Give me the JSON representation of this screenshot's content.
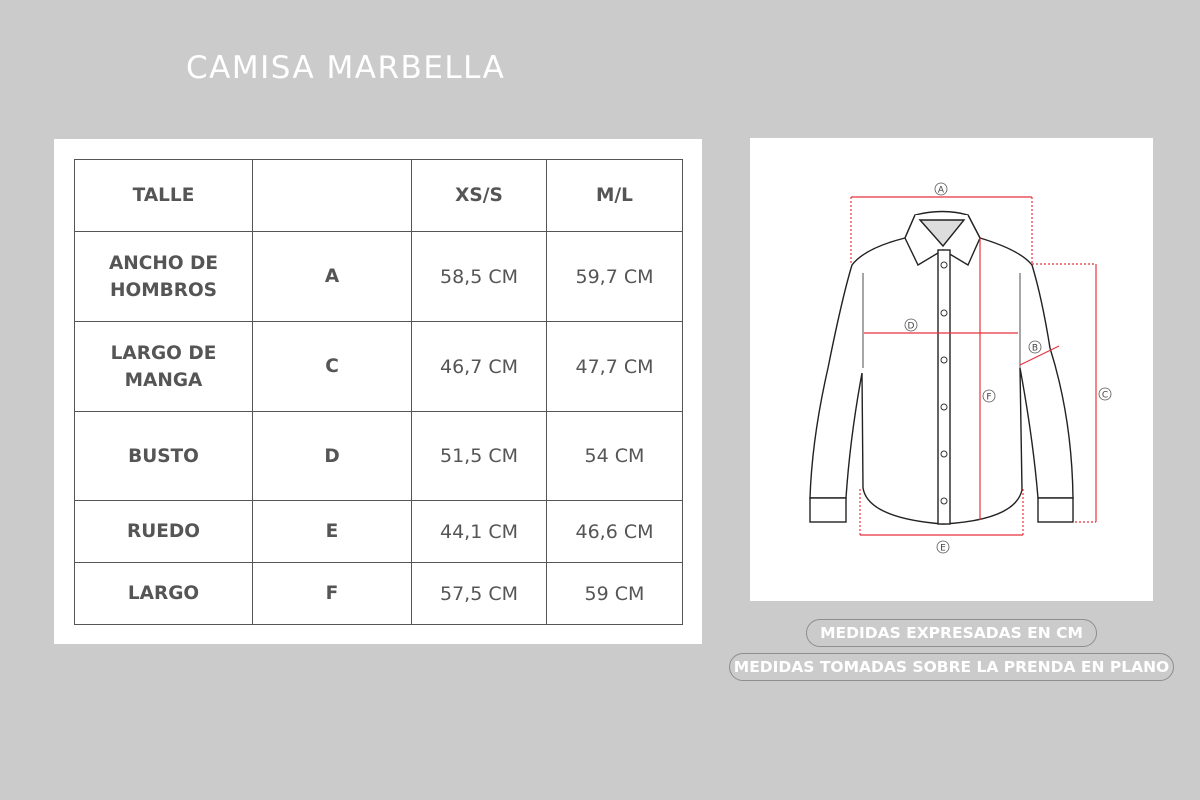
{
  "title": "CAMISA MARBELLA",
  "table": {
    "headers": [
      "TALLE",
      "",
      "XS/S",
      "M/L"
    ],
    "rows": [
      {
        "label": "ANCHO DE HOMBROS",
        "code": "A",
        "xs_s": "58,5 CM",
        "m_l": "59,7 CM"
      },
      {
        "label": "LARGO DE MANGA",
        "code": "C",
        "xs_s": "46,7 CM",
        "m_l": "47,7 CM"
      },
      {
        "label": "BUSTO",
        "code": "D",
        "xs_s": "51,5 CM",
        "m_l": "54 CM"
      },
      {
        "label": "RUEDO",
        "code": "E",
        "xs_s": "44,1 CM",
        "m_l": "46,6 CM"
      },
      {
        "label": "LARGO",
        "code": "F",
        "xs_s": "57,5 CM",
        "m_l": "59 CM"
      }
    ]
  },
  "diagram": {
    "labels": [
      "A",
      "B",
      "C",
      "D",
      "E",
      "F"
    ],
    "measure_color": "#e8333c"
  },
  "notes": [
    "MEDIDAS EXPRESADAS EN CM",
    "MEDIDAS TOMADAS SOBRE LA PRENDA EN PLANO"
  ]
}
